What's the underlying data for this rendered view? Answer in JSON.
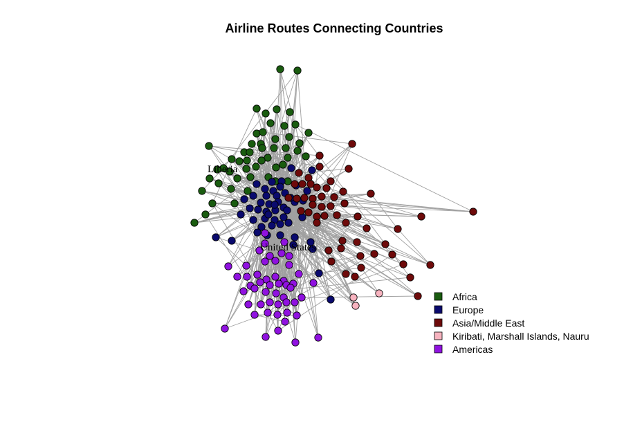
{
  "chart_data": {
    "type": "network",
    "title": "Airline Routes Connecting Countries",
    "edge_color": "#a0a0a0",
    "node_labels": [
      "Liberia",
      "United States"
    ],
    "legend": [
      {
        "label": "Africa",
        "color": "#1a5c10"
      },
      {
        "label": "Europe",
        "color": "#0a0a6e"
      },
      {
        "label": "Asia/Middle East",
        "color": "#6e0a0a"
      },
      {
        "label": "Kiribati, Marshall Islands, Nauru",
        "color": "#f7b3bf"
      },
      {
        "label": "Americas",
        "color": "#9012e0"
      }
    ],
    "group_node_counts": {
      "Africa": 52,
      "Europe": 50,
      "Asia/Middle East": 52,
      "Kiribati, Marshall Islands, Nauru": 3,
      "Americas": 50
    }
  }
}
